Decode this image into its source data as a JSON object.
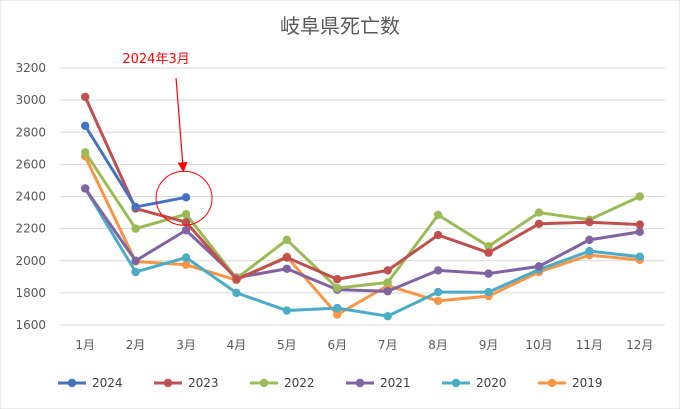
{
  "chart_data": {
    "type": "line",
    "title": "岐阜県死亡数",
    "xlabel": "",
    "ylabel": "",
    "categories": [
      "1月",
      "2月",
      "3月",
      "4月",
      "5月",
      "6月",
      "7月",
      "8月",
      "9月",
      "10月",
      "11月",
      "12月"
    ],
    "ylim": [
      1600,
      3200
    ],
    "yticks": [
      1600,
      1800,
      2000,
      2200,
      2400,
      2600,
      2800,
      3000,
      3200
    ],
    "grid": true,
    "legend_position": "bottom",
    "series": [
      {
        "name": "2024",
        "color": "#4472c4",
        "values": [
          2840,
          2335,
          2395,
          null,
          null,
          null,
          null,
          null,
          null,
          null,
          null,
          null
        ]
      },
      {
        "name": "2023",
        "color": "#c0504d",
        "values": [
          3020,
          2325,
          2240,
          1885,
          2020,
          1885,
          1940,
          2160,
          2050,
          2230,
          2240,
          2225
        ]
      },
      {
        "name": "2022",
        "color": "#9bbb59",
        "values": [
          2675,
          2200,
          2290,
          1890,
          2130,
          1830,
          1865,
          2285,
          2090,
          2300,
          2255,
          2400
        ]
      },
      {
        "name": "2021",
        "color": "#8064a2",
        "values": [
          2450,
          2000,
          2190,
          1895,
          1950,
          1820,
          1810,
          1940,
          1920,
          1965,
          2130,
          2180
        ]
      },
      {
        "name": "2020",
        "color": "#4bacc6",
        "values": [
          2450,
          1930,
          2020,
          1800,
          1690,
          1705,
          1655,
          1805,
          1805,
          1945,
          2060,
          2025
        ]
      },
      {
        "name": "2019",
        "color": "#f79646",
        "values": [
          2650,
          1995,
          1975,
          1880,
          2025,
          1665,
          1845,
          1750,
          1780,
          1930,
          2035,
          2005
        ]
      }
    ],
    "annotation": {
      "text": "2024年3月",
      "target_category": "3月",
      "target_value": 2395,
      "color": "#ff0000"
    }
  }
}
